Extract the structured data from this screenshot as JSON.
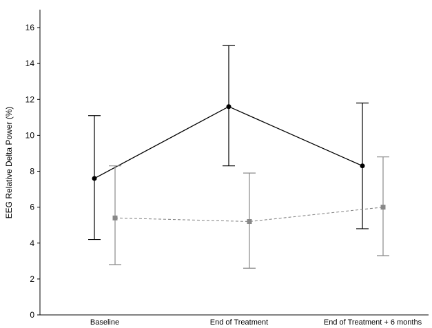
{
  "chart_data": {
    "type": "line",
    "title": "",
    "xlabel": "",
    "ylabel": "EEG Relative Delta Power (%)",
    "categories": [
      "Baseline",
      "End of Treatment",
      "End of Treatment + 6 months"
    ],
    "ylim": [
      0,
      17
    ],
    "yticks": [
      0,
      2,
      4,
      6,
      8,
      10,
      12,
      14,
      16
    ],
    "grid": false,
    "legend": "none",
    "series": [
      {
        "color": "#000000",
        "line_style": "solid",
        "marker": "circle",
        "values": [
          7.6,
          11.6,
          8.3
        ],
        "err_low": [
          4.2,
          8.3,
          4.8
        ],
        "err_high": [
          11.1,
          15.0,
          11.8
        ]
      },
      {
        "color": "#888888",
        "line_style": "dashed",
        "marker": "square",
        "values": [
          5.4,
          5.2,
          6.0
        ],
        "err_low": [
          2.8,
          2.6,
          3.3
        ],
        "err_high": [
          8.3,
          7.9,
          8.8
        ]
      }
    ]
  }
}
